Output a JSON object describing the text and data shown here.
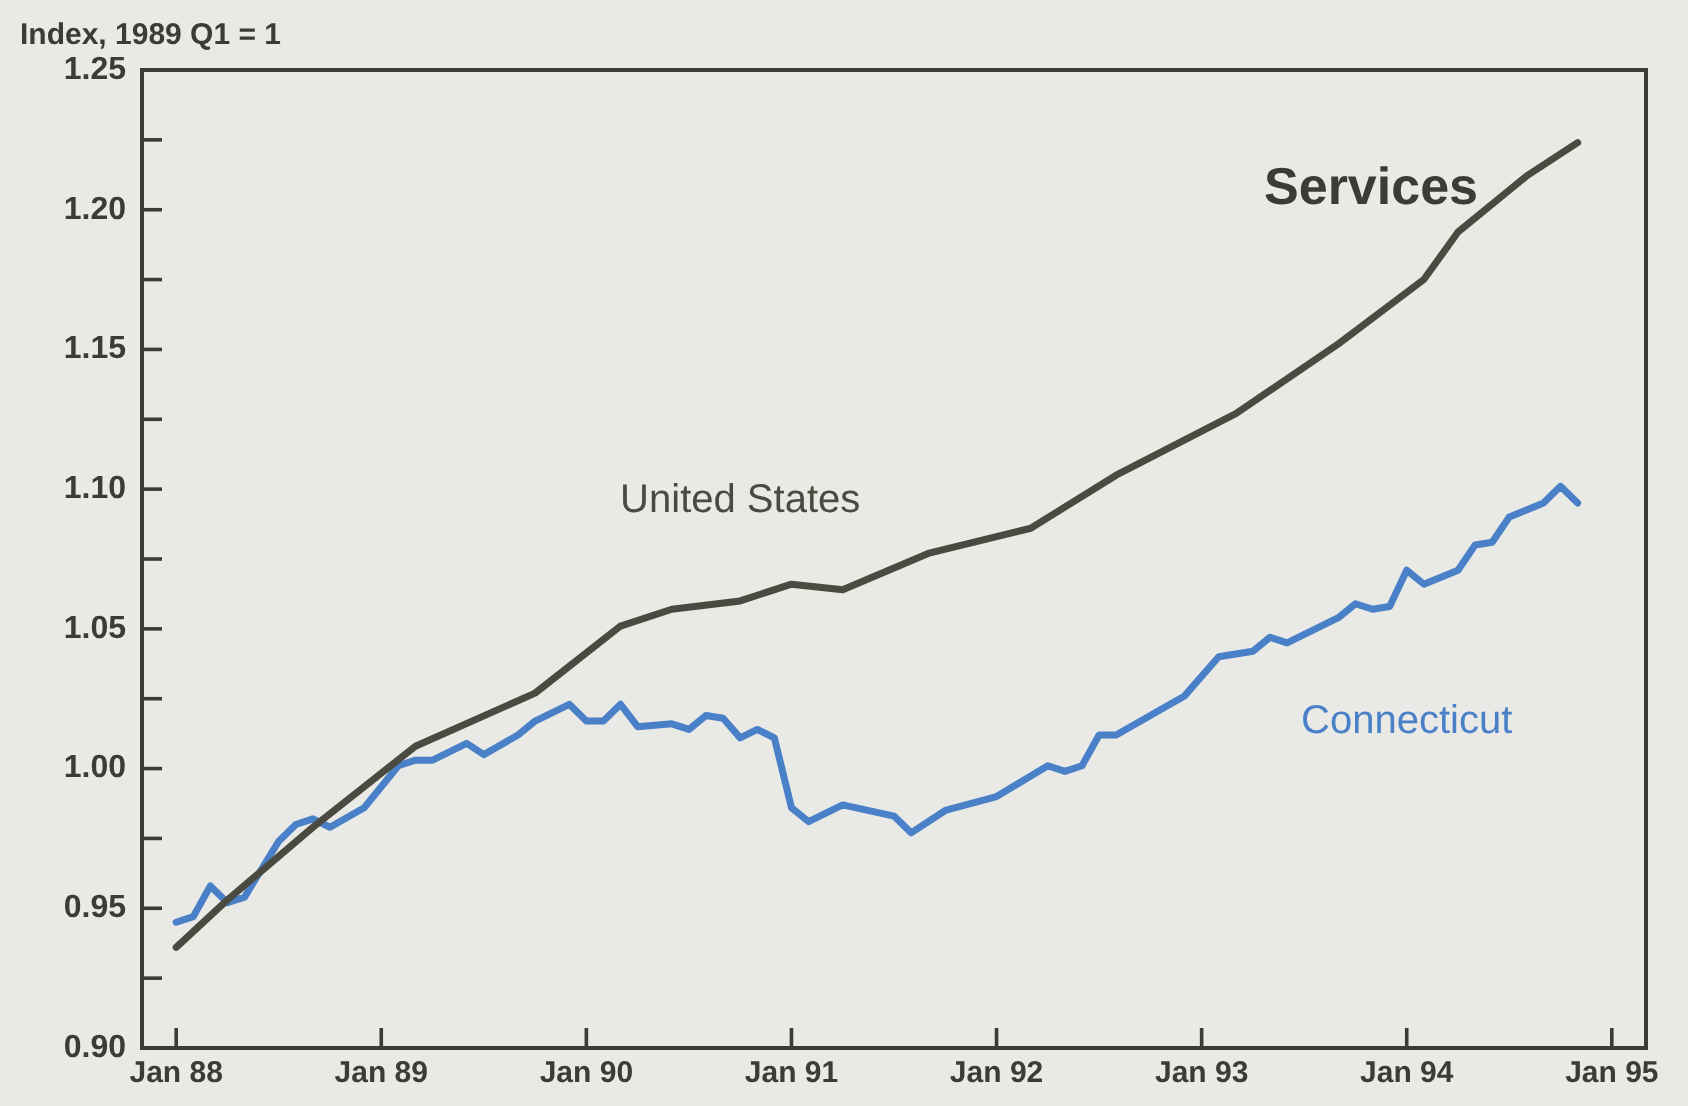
{
  "chart_data": {
    "type": "line",
    "title": "Services",
    "ylabel": "Index, 1989 Q1 = 1",
    "xlim": [
      "1987-11",
      "1995-03"
    ],
    "xticks": [
      {
        "value": "1988-01",
        "label": "Jan 88"
      },
      {
        "value": "1989-01",
        "label": "Jan 89"
      },
      {
        "value": "1990-01",
        "label": "Jan 90"
      },
      {
        "value": "1991-01",
        "label": "Jan 91"
      },
      {
        "value": "1992-01",
        "label": "Jan 92"
      },
      {
        "value": "1993-01",
        "label": "Jan 93"
      },
      {
        "value": "1994-01",
        "label": "Jan 94"
      },
      {
        "value": "1995-01",
        "label": "Jan 95"
      }
    ],
    "ylim": [
      0.9,
      1.25
    ],
    "yticks": [
      {
        "value": 0.9,
        "label": "0.90"
      },
      {
        "value": 0.925,
        "label": null
      },
      0.95,
      {
        "value": 0.975,
        "label": null
      },
      {
        "value": 1.0,
        "label": "1.00"
      },
      {
        "value": 1.025,
        "label": null
      },
      1.05,
      {
        "value": 1.075,
        "label": null
      },
      {
        "value": 1.1,
        "label": "1.10"
      },
      {
        "value": 1.125,
        "label": null
      },
      1.15,
      {
        "value": 1.175,
        "label": null
      },
      {
        "value": 1.2,
        "label": "1.20"
      },
      {
        "value": 1.225,
        "label": null
      },
      1.25
    ],
    "grid": false,
    "legend": false,
    "marker": "none",
    "line_style": "solid",
    "series": [
      {
        "name": "United States",
        "color": "#4a4a40",
        "x": [
          "1988-01",
          "1988-04",
          "1988-09",
          "1989-03",
          "1989-10",
          "1990-03",
          "1990-06",
          "1990-10",
          "1991-01",
          "1991-04",
          "1991-09",
          "1992-03",
          "1992-08",
          "1993-03",
          "1993-09",
          "1994-02",
          "1994-04",
          "1994-08",
          "1994-11"
        ],
        "values": [
          0.936,
          0.953,
          0.979,
          1.008,
          1.027,
          1.051,
          1.057,
          1.06,
          1.066,
          1.064,
          1.077,
          1.086,
          1.105,
          1.127,
          1.152,
          1.175,
          1.192,
          1.212,
          1.224
        ]
      },
      {
        "name": "Connecticut",
        "color": "#4a80c8",
        "x": [
          "1988-01",
          "1988-02",
          "1988-03",
          "1988-04",
          "1988-05",
          "1988-07",
          "1988-08",
          "1988-09",
          "1988-10",
          "1988-12",
          "1989-02",
          "1989-03",
          "1989-04",
          "1989-06",
          "1989-07",
          "1989-09",
          "1989-10",
          "1989-12",
          "1990-01",
          "1990-02",
          "1990-03",
          "1990-04",
          "1990-06",
          "1990-07",
          "1990-08",
          "1990-09",
          "1990-10",
          "1990-11",
          "1990-12",
          "1991-01",
          "1991-02",
          "1991-04",
          "1991-07",
          "1991-08",
          "1991-10",
          "1992-01",
          "1992-04",
          "1992-05",
          "1992-06",
          "1992-07",
          "1992-08",
          "1992-12",
          "1993-02",
          "1993-04",
          "1993-05",
          "1993-06",
          "1993-09",
          "1993-10",
          "1993-11",
          "1993-12",
          "1994-01",
          "1994-02",
          "1994-04",
          "1994-05",
          "1994-06",
          "1994-07",
          "1994-09",
          "1994-10",
          "1994-11"
        ],
        "values": [
          0.945,
          0.947,
          0.958,
          0.952,
          0.954,
          0.974,
          0.98,
          0.982,
          0.979,
          0.986,
          1.001,
          1.003,
          1.003,
          1.009,
          1.005,
          1.012,
          1.017,
          1.023,
          1.017,
          1.017,
          1.023,
          1.015,
          1.016,
          1.014,
          1.019,
          1.018,
          1.011,
          1.014,
          1.011,
          0.986,
          0.981,
          0.987,
          0.983,
          0.977,
          0.985,
          0.99,
          1.001,
          0.999,
          1.001,
          1.012,
          1.012,
          1.026,
          1.04,
          1.042,
          1.047,
          1.045,
          1.054,
          1.059,
          1.057,
          1.058,
          1.071,
          1.066,
          1.071,
          1.08,
          1.081,
          1.09,
          1.095,
          1.101,
          1.095
        ]
      }
    ]
  }
}
